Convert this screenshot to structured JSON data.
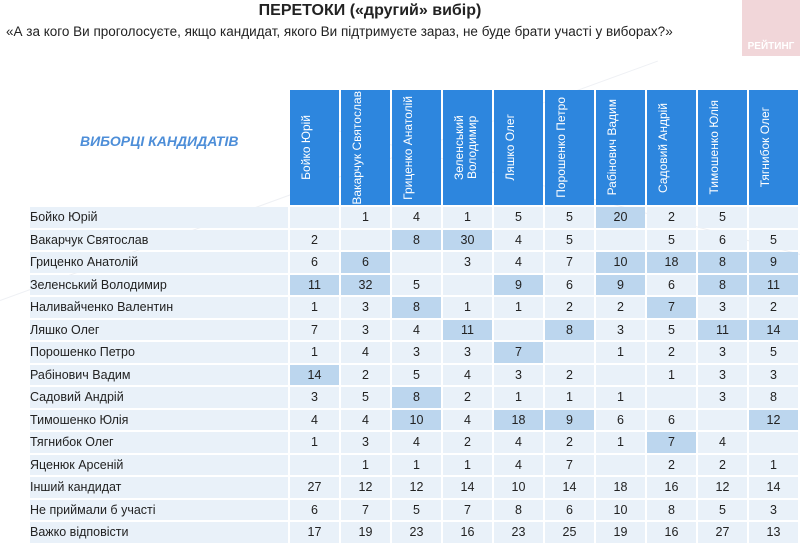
{
  "title": "ПЕРЕТОКИ («другий» вибір)",
  "subtitle": "«А за кого Ви проголосуєте, якщо кандидат, якого Ви підтримуєте зараз, не буде брати участі у виборах?»",
  "logo_text": "РЕЙТИНГ",
  "voters_label": "ВИБОРЦІ КАНДИДАТІВ",
  "colors": {
    "header": "#2d86de",
    "cell": "#e9f1f9",
    "highlight": "#bcd6ee",
    "label": "#4d8ed8"
  },
  "columns": [
    "Бойко Юрій",
    "Вакарчук Святослав",
    "Гриценко Анатолій",
    "Зеленський Володимир",
    "Ляшко Олег",
    "Порошенко Петро",
    "Рабінович Вадим",
    "Садовий Андрій",
    "Тимошенко Юлія",
    "Тягнибок Олег"
  ],
  "rows": [
    {
      "name": "Бойко Юрій",
      "values": [
        "",
        "1",
        "4",
        "1",
        "5",
        "5",
        "20",
        "2",
        "5",
        ""
      ],
      "highlight": [
        6
      ]
    },
    {
      "name": "Вакарчук Святослав",
      "values": [
        "2",
        "",
        "8",
        "30",
        "4",
        "5",
        "",
        "5",
        "6",
        "5"
      ],
      "highlight": [
        2,
        3
      ]
    },
    {
      "name": "Гриценко Анатолій",
      "values": [
        "6",
        "6",
        "",
        "3",
        "4",
        "7",
        "10",
        "18",
        "8",
        "9"
      ],
      "highlight": [
        1,
        6,
        7,
        8,
        9
      ]
    },
    {
      "name": "Зеленський Володимир",
      "values": [
        "11",
        "32",
        "5",
        "",
        "9",
        "6",
        "9",
        "6",
        "8",
        "11"
      ],
      "highlight": [
        0,
        1,
        4,
        6,
        8,
        9
      ]
    },
    {
      "name": "Наливайченко Валентин",
      "values": [
        "1",
        "3",
        "8",
        "1",
        "1",
        "2",
        "2",
        "7",
        "3",
        "2"
      ],
      "highlight": [
        2,
        7
      ]
    },
    {
      "name": "Ляшко Олег",
      "values": [
        "7",
        "3",
        "4",
        "11",
        "",
        "8",
        "3",
        "5",
        "11",
        "14"
      ],
      "highlight": [
        3,
        5,
        8,
        9
      ]
    },
    {
      "name": "Порошенко Петро",
      "values": [
        "1",
        "4",
        "3",
        "3",
        "7",
        "",
        "1",
        "2",
        "3",
        "5"
      ],
      "highlight": [
        4
      ]
    },
    {
      "name": "Рабінович Вадим",
      "values": [
        "14",
        "2",
        "5",
        "4",
        "3",
        "2",
        "",
        "1",
        "3",
        "3"
      ],
      "highlight": [
        0
      ]
    },
    {
      "name": "Садовий Андрій",
      "values": [
        "3",
        "5",
        "8",
        "2",
        "1",
        "1",
        "1",
        "",
        "3",
        "8"
      ],
      "highlight": [
        2
      ]
    },
    {
      "name": "Тимошенко Юлія",
      "values": [
        "4",
        "4",
        "10",
        "4",
        "18",
        "9",
        "6",
        "6",
        "",
        "12"
      ],
      "highlight": [
        2,
        4,
        5,
        9
      ]
    },
    {
      "name": "Тягнибок Олег",
      "values": [
        "1",
        "3",
        "4",
        "2",
        "4",
        "2",
        "1",
        "7",
        "4",
        ""
      ],
      "highlight": [
        7
      ]
    },
    {
      "name": "Яценюк Арсеній",
      "values": [
        "",
        "1",
        "1",
        "1",
        "4",
        "7",
        "",
        "2",
        "2",
        "1"
      ],
      "highlight": []
    },
    {
      "name": "Інший кандидат",
      "values": [
        "27",
        "12",
        "12",
        "14",
        "10",
        "14",
        "18",
        "16",
        "12",
        "14"
      ],
      "highlight": []
    },
    {
      "name": "Не приймали б участі",
      "values": [
        "6",
        "7",
        "5",
        "7",
        "8",
        "6",
        "10",
        "8",
        "5",
        "3"
      ],
      "highlight": []
    },
    {
      "name": "Важко відповісти",
      "values": [
        "17",
        "19",
        "23",
        "16",
        "23",
        "25",
        "19",
        "16",
        "27",
        "13"
      ],
      "highlight": []
    }
  ]
}
